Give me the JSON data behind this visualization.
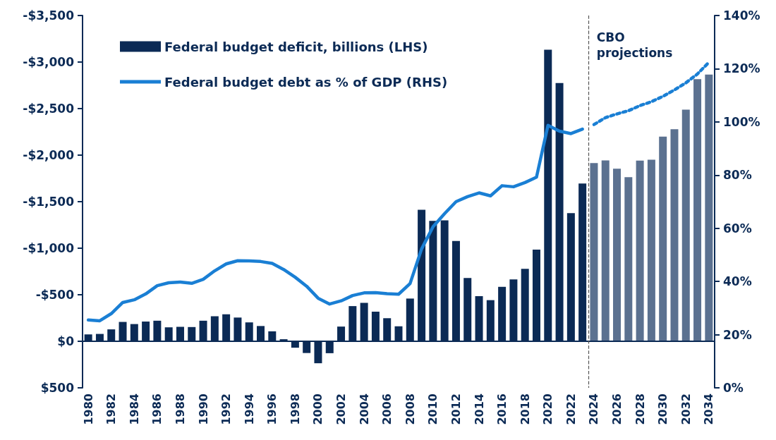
{
  "chart_data": {
    "type": "bar",
    "legend": "top left",
    "marker": "none",
    "x": [
      1980,
      1981,
      1982,
      1983,
      1984,
      1985,
      1986,
      1987,
      1988,
      1989,
      1990,
      1991,
      1992,
      1993,
      1994,
      1995,
      1996,
      1997,
      1998,
      1999,
      2000,
      2001,
      2002,
      2003,
      2004,
      2005,
      2006,
      2007,
      2008,
      2009,
      2010,
      2011,
      2012,
      2013,
      2014,
      2015,
      2016,
      2017,
      2018,
      2019,
      2020,
      2021,
      2022,
      2023,
      2024,
      2025,
      2026,
      2027,
      2028,
      2029,
      2030,
      2031,
      2032,
      2033,
      2034
    ],
    "xlim": [
      1979.5,
      2034.5
    ],
    "xticks": [
      1980,
      1982,
      1984,
      1986,
      1988,
      1990,
      1992,
      1994,
      1996,
      1998,
      2000,
      2002,
      2004,
      2006,
      2008,
      2010,
      2012,
      2014,
      2016,
      2018,
      2020,
      2022,
      2024,
      2026,
      2028,
      2030,
      2032,
      2034
    ],
    "ylim": [
      500,
      -3500
    ],
    "yticks": [
      {
        "value": -3500,
        "label": "-$3,500"
      },
      {
        "value": -3000,
        "label": "-$3,000"
      },
      {
        "value": -2500,
        "label": "-$2,500"
      },
      {
        "value": -2000,
        "label": "-$2,000"
      },
      {
        "value": -1500,
        "label": "-$1,500"
      },
      {
        "value": -1000,
        "label": "-$1,000"
      },
      {
        "value": -500,
        "label": "-$500"
      },
      {
        "value": 0,
        "label": "$0"
      },
      {
        "value": 500,
        "label": "$500"
      }
    ],
    "y2lim": [
      0,
      140
    ],
    "y2ticks": [
      {
        "value": 0,
        "label": "0%"
      },
      {
        "value": 20,
        "label": "20%"
      },
      {
        "value": 40,
        "label": "40%"
      },
      {
        "value": 60,
        "label": "60%"
      },
      {
        "value": 80,
        "label": "80%"
      },
      {
        "value": 100,
        "label": "100%"
      },
      {
        "value": 120,
        "label": "120%"
      },
      {
        "value": 140,
        "label": "140%"
      }
    ],
    "ref_lines": [
      {
        "axis": "y",
        "value": 0,
        "color": "#0b2a55",
        "line_style": "solid"
      },
      {
        "axis": "x",
        "value": 2023.5,
        "label": "CBO projections",
        "color": "#555555",
        "line_style": "dashed"
      }
    ],
    "series": [
      {
        "name": "Federal budget deficit, billions (LHS)",
        "color": "#0b2a55",
        "values": [
          -74,
          -79,
          -128,
          -208,
          -185,
          -212,
          -221,
          -150,
          -155,
          -153,
          -221,
          -269,
          -290,
          -255,
          -203,
          -164,
          -107,
          -22,
          69,
          126,
          236,
          128,
          -158,
          -378,
          -413,
          -318,
          -248,
          -161,
          -459,
          -1413,
          -1294,
          -1300,
          -1077,
          -680,
          -485,
          -442,
          -585,
          -665,
          -779,
          -984,
          -3132,
          -2775,
          -1376,
          -1695,
          -1915,
          -1944,
          -1854,
          -1764,
          -1941,
          -1951,
          -2199,
          -2278,
          -2489,
          -2817,
          -2865
        ],
        "colors": [
          "#0b2a55",
          "#0b2a55",
          "#0b2a55",
          "#0b2a55",
          "#0b2a55",
          "#0b2a55",
          "#0b2a55",
          "#0b2a55",
          "#0b2a55",
          "#0b2a55",
          "#0b2a55",
          "#0b2a55",
          "#0b2a55",
          "#0b2a55",
          "#0b2a55",
          "#0b2a55",
          "#0b2a55",
          "#0b2a55",
          "#0b2a55",
          "#0b2a55",
          "#0b2a55",
          "#0b2a55",
          "#0b2a55",
          "#0b2a55",
          "#0b2a55",
          "#0b2a55",
          "#0b2a55",
          "#0b2a55",
          "#0b2a55",
          "#0b2a55",
          "#0b2a55",
          "#0b2a55",
          "#0b2a55",
          "#0b2a55",
          "#0b2a55",
          "#0b2a55",
          "#0b2a55",
          "#0b2a55",
          "#0b2a55",
          "#0b2a55",
          "#0b2a55",
          "#0b2a55",
          "#0b2a55",
          "#0b2a55",
          "#5b7190",
          "#5b7190",
          "#5b7190",
          "#5b7190",
          "#5b7190",
          "#5b7190",
          "#5b7190",
          "#5b7190",
          "#5b7190",
          "#5b7190",
          "#5b7190"
        ]
      },
      {
        "name": "Federal budget debt as % of GDP (RHS)",
        "type": "line",
        "axis": "y2",
        "color": "#1a7fd4",
        "line_style": "solid",
        "x": [
          1980,
          1981,
          1982,
          1983,
          1984,
          1985,
          1986,
          1987,
          1988,
          1989,
          1990,
          1991,
          1992,
          1993,
          1994,
          1995,
          1996,
          1997,
          1998,
          1999,
          2000,
          2001,
          2002,
          2003,
          2004,
          2005,
          2006,
          2007,
          2008,
          2009,
          2010,
          2011,
          2012,
          2013,
          2014,
          2015,
          2016,
          2017,
          2018,
          2019,
          2020,
          2021,
          2022,
          2023
        ],
        "values": [
          25.5,
          25.2,
          27.9,
          32.1,
          33.1,
          35.3,
          38.4,
          39.5,
          39.8,
          39.3,
          40.8,
          44.0,
          46.6,
          47.8,
          47.7,
          47.5,
          46.8,
          44.5,
          41.6,
          38.2,
          33.7,
          31.5,
          32.7,
          34.7,
          35.7,
          35.8,
          35.4,
          35.2,
          39.2,
          52.2,
          60.6,
          65.5,
          70.0,
          71.9,
          73.3,
          72.2,
          76.0,
          75.6,
          77.2,
          79.2,
          98.7,
          96.5,
          95.6,
          97.3
        ]
      },
      {
        "type": "line",
        "axis": "y2",
        "color": "#1a7fd4",
        "line_style": "dotted",
        "x": [
          2024,
          2025,
          2026,
          2027,
          2028,
          2029,
          2030,
          2031,
          2032,
          2033,
          2034
        ],
        "values": [
          99.0,
          101.6,
          103.0,
          104.2,
          106.1,
          107.6,
          109.6,
          112.0,
          114.7,
          118.0,
          122.4
        ]
      }
    ]
  }
}
